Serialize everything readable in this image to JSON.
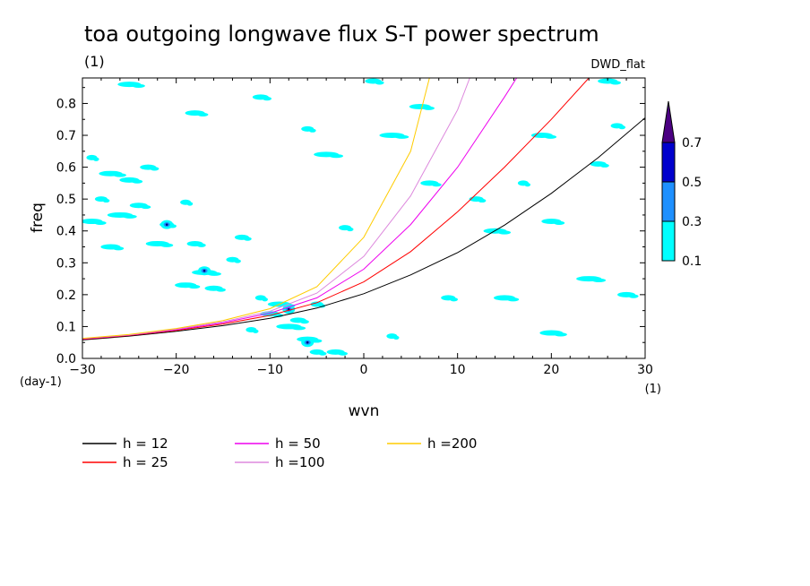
{
  "chart_data": {
    "type": "contour",
    "title": "toa outgoing longwave flux S-T power spectrum",
    "subtitle_left": "(1)",
    "subtitle_right": "DWD_flat",
    "xlabel": "wvn",
    "ylabel": "freq",
    "x_unit": "(1)",
    "y_unit": "(day-1)",
    "xlim": [
      -30,
      30
    ],
    "ylim": [
      0,
      0.88
    ],
    "x_ticks": [
      -30,
      -20,
      -10,
      0,
      10,
      20,
      30
    ],
    "x_tick_labels": [
      "−30",
      "−20",
      "−10",
      "0",
      "10",
      "20",
      "30"
    ],
    "y_ticks": [
      0.0,
      0.1,
      0.2,
      0.3,
      0.4,
      0.5,
      0.6,
      0.7,
      0.8
    ],
    "y_tick_labels": [
      "0.0",
      "0.1",
      "0.2",
      "0.3",
      "0.4",
      "0.5",
      "0.6",
      "0.7",
      "0.8"
    ],
    "colorbar": {
      "levels": [
        0.1,
        0.3,
        0.5,
        0.7
      ],
      "labels": [
        "0.1",
        "0.3",
        "0.5",
        "0.7"
      ],
      "colors": [
        "#00ffff",
        "#1e90ff",
        "#0000cd",
        "#4b0082"
      ]
    },
    "shaded_patches": [
      {
        "x": -29,
        "y": 0.63,
        "level": 1
      },
      {
        "x": -27,
        "y": 0.58,
        "level": 1
      },
      {
        "x": -25,
        "y": 0.56,
        "level": 1
      },
      {
        "x": -23,
        "y": 0.6,
        "level": 1
      },
      {
        "x": -28,
        "y": 0.5,
        "level": 1
      },
      {
        "x": -26,
        "y": 0.45,
        "level": 1
      },
      {
        "x": -29,
        "y": 0.43,
        "level": 1
      },
      {
        "x": -24,
        "y": 0.48,
        "level": 1
      },
      {
        "x": -21,
        "y": 0.42,
        "level": 1
      },
      {
        "x": -19,
        "y": 0.49,
        "level": 1
      },
      {
        "x": -22,
        "y": 0.36,
        "level": 1
      },
      {
        "x": -27,
        "y": 0.35,
        "level": 1
      },
      {
        "x": -18,
        "y": 0.36,
        "level": 1
      },
      {
        "x": -14,
        "y": 0.31,
        "level": 1
      },
      {
        "x": -17,
        "y": 0.27,
        "level": 1
      },
      {
        "x": -19,
        "y": 0.23,
        "level": 1
      },
      {
        "x": -16,
        "y": 0.22,
        "level": 1
      },
      {
        "x": -13,
        "y": 0.38,
        "level": 1
      },
      {
        "x": -11,
        "y": 0.19,
        "level": 1
      },
      {
        "x": -9,
        "y": 0.17,
        "level": 1
      },
      {
        "x": -10,
        "y": 0.14,
        "level": 1
      },
      {
        "x": -7,
        "y": 0.12,
        "level": 1
      },
      {
        "x": -5,
        "y": 0.17,
        "level": 1
      },
      {
        "x": -8,
        "y": 0.1,
        "level": 1
      },
      {
        "x": -6,
        "y": 0.06,
        "level": 1
      },
      {
        "x": -3,
        "y": 0.02,
        "level": 1
      },
      {
        "x": -5,
        "y": 0.02,
        "level": 1
      },
      {
        "x": -12,
        "y": 0.09,
        "level": 1
      },
      {
        "x": -25,
        "y": 0.86,
        "level": 1
      },
      {
        "x": -18,
        "y": 0.77,
        "level": 1
      },
      {
        "x": -11,
        "y": 0.82,
        "level": 1
      },
      {
        "x": -6,
        "y": 0.72,
        "level": 1
      },
      {
        "x": 3,
        "y": 0.7,
        "level": 1
      },
      {
        "x": 6,
        "y": 0.79,
        "level": 1
      },
      {
        "x": 7,
        "y": 0.55,
        "level": 1
      },
      {
        "x": 12,
        "y": 0.5,
        "level": 1
      },
      {
        "x": 17,
        "y": 0.55,
        "level": 1
      },
      {
        "x": 14,
        "y": 0.4,
        "level": 1
      },
      {
        "x": 20,
        "y": 0.43,
        "level": 1
      },
      {
        "x": 25,
        "y": 0.61,
        "level": 1
      },
      {
        "x": 27,
        "y": 0.73,
        "level": 1
      },
      {
        "x": 24,
        "y": 0.25,
        "level": 1
      },
      {
        "x": 15,
        "y": 0.19,
        "level": 1
      },
      {
        "x": 28,
        "y": 0.2,
        "level": 1
      },
      {
        "x": 9,
        "y": 0.19,
        "level": 1
      },
      {
        "x": 3,
        "y": 0.07,
        "level": 1
      },
      {
        "x": 20,
        "y": 0.08,
        "level": 1
      },
      {
        "x": 26,
        "y": 0.87,
        "level": 1
      },
      {
        "x": 1,
        "y": 0.87,
        "level": 1
      },
      {
        "x": -2,
        "y": 0.41,
        "level": 1
      },
      {
        "x": -4,
        "y": 0.64,
        "level": 1
      },
      {
        "x": 19,
        "y": 0.7,
        "level": 1
      },
      {
        "x": -8,
        "y": 0.154,
        "level": 2
      },
      {
        "x": -6,
        "y": 0.05,
        "level": 2
      },
      {
        "x": -21,
        "y": 0.42,
        "level": 2
      },
      {
        "x": -17,
        "y": 0.275,
        "level": 2
      }
    ],
    "series": [
      {
        "name": "h = 12",
        "color": "#000000",
        "x": [
          -30,
          -25,
          -20,
          -15,
          -10,
          -5,
          0,
          5,
          10,
          15,
          20,
          25,
          30
        ],
        "y": [
          0.058,
          0.07,
          0.085,
          0.103,
          0.126,
          0.158,
          0.203,
          0.262,
          0.332,
          0.418,
          0.518,
          0.63,
          0.755
        ]
      },
      {
        "name": "h = 25",
        "color": "#ff0000",
        "x": [
          -30,
          -25,
          -20,
          -15,
          -10,
          -5,
          0,
          5,
          10,
          15,
          20,
          24
        ],
        "y": [
          0.06,
          0.072,
          0.088,
          0.108,
          0.135,
          0.175,
          0.24,
          0.335,
          0.46,
          0.6,
          0.75,
          0.88
        ]
      },
      {
        "name": "h = 50",
        "color": "#ee00ee",
        "x": [
          -30,
          -25,
          -20,
          -15,
          -10,
          -5,
          0,
          5,
          10,
          15,
          16.3
        ],
        "y": [
          0.061,
          0.073,
          0.09,
          0.112,
          0.142,
          0.19,
          0.28,
          0.42,
          0.6,
          0.82,
          0.88
        ]
      },
      {
        "name": "h =100",
        "color": "#dd88dd",
        "x": [
          -30,
          -25,
          -20,
          -15,
          -10,
          -5,
          0,
          5,
          10,
          11.3
        ],
        "y": [
          0.062,
          0.074,
          0.092,
          0.115,
          0.148,
          0.205,
          0.32,
          0.51,
          0.78,
          0.88
        ]
      },
      {
        "name": "h =200",
        "color": "#ffcc00",
        "x": [
          -30,
          -25,
          -20,
          -15,
          -10,
          -5,
          0,
          5,
          7
        ],
        "y": [
          0.063,
          0.075,
          0.094,
          0.119,
          0.156,
          0.225,
          0.38,
          0.65,
          0.88
        ]
      }
    ]
  }
}
